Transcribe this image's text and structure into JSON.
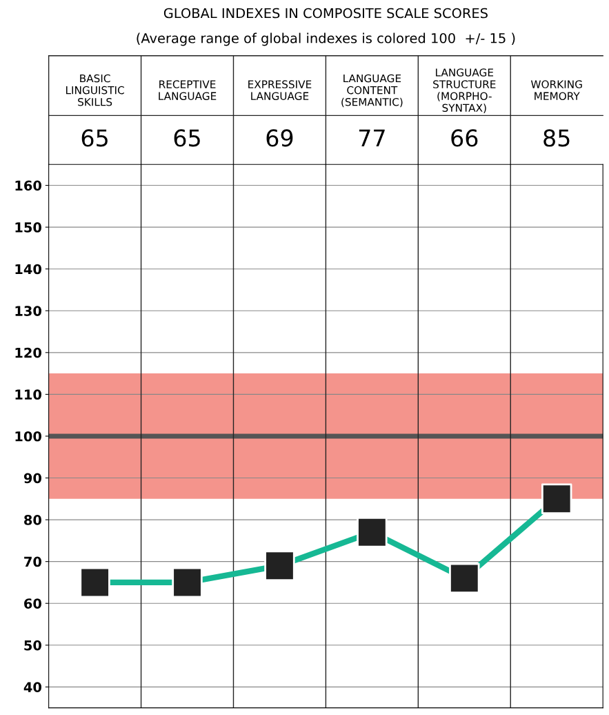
{
  "chart_data": {
    "type": "line",
    "title": "GLOBAL INDEXES IN COMPOSITE SCALE SCORES",
    "subtitle": "(Average range of global indexes is colored 100  +/- 15 )",
    "categories": [
      "BASIC\nLINGUISTIC\nSKILLS",
      "RECEPTIVE\nLANGUAGE",
      "EXPRESSIVE\nLANGUAGE",
      "LANGUAGE\nCONTENT\n(SEMANTIC)",
      "LANGUAGE\nSTRUCTURE\n(MORPHO-\nSYNTAX)",
      "WORKING\nMEMORY"
    ],
    "series": [
      {
        "color": "#16b894",
        "values": [
          65,
          65,
          69,
          77,
          66,
          85
        ]
      }
    ],
    "annotations": [
      "65",
      "65",
      "69",
      "77",
      "66",
      "85"
    ],
    "marker": "square",
    "line_style": "solid",
    "grid": "y",
    "ylim": [
      35,
      165
    ],
    "yticks": [
      40,
      50,
      60,
      70,
      80,
      90,
      100,
      110,
      120,
      130,
      140,
      150,
      160
    ],
    "bands": [
      {
        "axis": "y",
        "from": 85,
        "to": 115,
        "color": "#f4948c"
      }
    ],
    "ref_lines": [
      {
        "axis": "y",
        "value": 100,
        "color": "#555555",
        "line_style": "solid"
      }
    ]
  }
}
